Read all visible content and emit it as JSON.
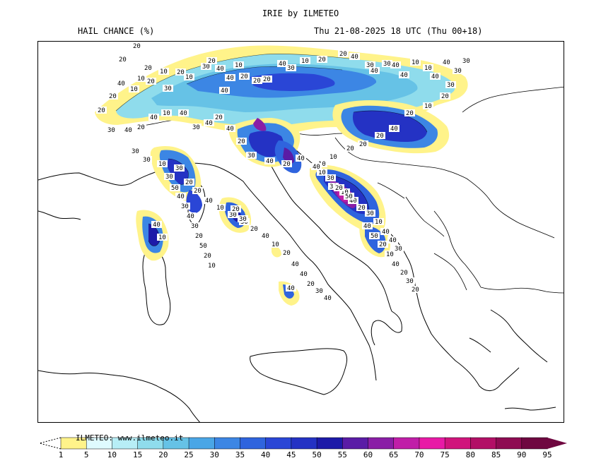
{
  "header": {
    "title": "IRIE by ILMETEO",
    "subtitle": "HAIL CHANCE (%)",
    "valid_time": "Thu 21-08-2025 18 UTC (Thu 00+18)"
  },
  "legend": {
    "credit": "ILMETEO: www.ilmeteo.it",
    "ticks": [
      "1",
      "5",
      "10",
      "15",
      "20",
      "25",
      "30",
      "35",
      "40",
      "45",
      "50",
      "55",
      "60",
      "65",
      "70",
      "75",
      "80",
      "85",
      "90",
      "95"
    ],
    "colors": [
      "#fff38a",
      "#dffbff",
      "#b7eef6",
      "#8fdcec",
      "#66c2e6",
      "#4aa6e6",
      "#3c86e4",
      "#2f64de",
      "#2a46d6",
      "#2432c4",
      "#1d1aa8",
      "#5a1ca6",
      "#8a1ea6",
      "#c01ea8",
      "#e81aa6",
      "#d0147c",
      "#b20f66",
      "#8e0b52",
      "#6f0740"
    ]
  },
  "map_labels": [
    {
      "text": "20"
    },
    {
      "text": "10"
    },
    {
      "text": "20"
    },
    {
      "text": "10"
    },
    {
      "text": "20"
    },
    {
      "text": "20"
    },
    {
      "text": "10"
    },
    {
      "text": "20"
    },
    {
      "text": "30"
    },
    {
      "text": "10"
    },
    {
      "text": "30"
    },
    {
      "text": "20"
    },
    {
      "text": "40"
    },
    {
      "text": "40"
    },
    {
      "text": "40"
    },
    {
      "text": "10"
    },
    {
      "text": "20"
    },
    {
      "text": "20"
    },
    {
      "text": "20"
    },
    {
      "text": "40"
    },
    {
      "text": "30"
    },
    {
      "text": "10"
    },
    {
      "text": "20"
    },
    {
      "text": "20"
    },
    {
      "text": "40"
    },
    {
      "text": "30"
    },
    {
      "text": "40"
    },
    {
      "text": "30"
    },
    {
      "text": "40"
    },
    {
      "text": "40"
    },
    {
      "text": "10"
    },
    {
      "text": "10"
    },
    {
      "text": "40"
    },
    {
      "text": "40"
    },
    {
      "text": "30"
    },
    {
      "text": "30"
    },
    {
      "text": "30"
    },
    {
      "text": "20"
    },
    {
      "text": "10"
    },
    {
      "text": "20"
    },
    {
      "text": "40"
    },
    {
      "text": "20"
    },
    {
      "text": "20"
    },
    {
      "text": "20"
    },
    {
      "text": "10"
    },
    {
      "text": "10"
    },
    {
      "text": "40"
    },
    {
      "text": "20"
    },
    {
      "text": "40"
    },
    {
      "text": "30"
    },
    {
      "text": "20"
    },
    {
      "text": "40"
    },
    {
      "text": "20"
    },
    {
      "text": "40"
    },
    {
      "text": "30"
    },
    {
      "text": "40"
    },
    {
      "text": "10"
    },
    {
      "text": "40"
    },
    {
      "text": "20"
    },
    {
      "text": "40"
    },
    {
      "text": "30"
    },
    {
      "text": "20"
    },
    {
      "text": "20"
    },
    {
      "text": "40"
    },
    {
      "text": "30"
    },
    {
      "text": "30"
    },
    {
      "text": "10"
    },
    {
      "text": "30"
    },
    {
      "text": "20"
    },
    {
      "text": "20"
    },
    {
      "text": "40"
    },
    {
      "text": "10"
    },
    {
      "text": "30"
    },
    {
      "text": "30"
    },
    {
      "text": "20"
    },
    {
      "text": "40"
    },
    {
      "text": "10"
    },
    {
      "text": "20"
    },
    {
      "text": "40"
    },
    {
      "text": "40"
    },
    {
      "text": "20"
    },
    {
      "text": "30"
    },
    {
      "text": "40"
    },
    {
      "text": "30"
    },
    {
      "text": "10"
    },
    {
      "text": "40"
    },
    {
      "text": "20"
    },
    {
      "text": "30"
    },
    {
      "text": "10"
    },
    {
      "text": "40"
    },
    {
      "text": "40"
    },
    {
      "text": "30"
    },
    {
      "text": "40"
    },
    {
      "text": "10"
    },
    {
      "text": "20"
    },
    {
      "text": "30"
    },
    {
      "text": "40"
    },
    {
      "text": "50"
    },
    {
      "text": "20"
    },
    {
      "text": "30"
    },
    {
      "text": "10"
    },
    {
      "text": "40"
    },
    {
      "text": "30"
    },
    {
      "text": "50"
    },
    {
      "text": "40"
    },
    {
      "text": "30"
    },
    {
      "text": "40"
    },
    {
      "text": "30"
    },
    {
      "text": "20"
    },
    {
      "text": "50"
    },
    {
      "text": "20"
    },
    {
      "text": "10"
    },
    {
      "text": "40"
    },
    {
      "text": "50"
    },
    {
      "text": "20"
    },
    {
      "text": "10"
    },
    {
      "text": "40"
    },
    {
      "text": "20"
    },
    {
      "text": "30"
    },
    {
      "text": "20"
    }
  ]
}
